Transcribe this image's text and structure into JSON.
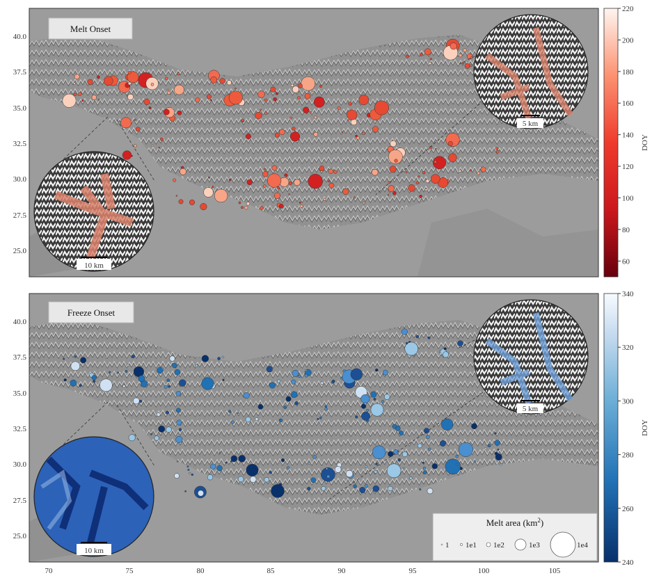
{
  "x_ticks": [
    "70",
    "75",
    "80",
    "85",
    "90",
    "95",
    "100",
    "105"
  ],
  "y_ticks": [
    "40.0",
    "37.5",
    "35.0",
    "32.5",
    "30.0",
    "27.5",
    "25.0"
  ],
  "panels": [
    {
      "title": "Melt Onset",
      "colorbar": {
        "label": "DOY",
        "ticks": [
          "220",
          "200",
          "180",
          "160",
          "140",
          "120",
          "100",
          "80",
          "60"
        ],
        "min": 50,
        "max": 220,
        "scheme": "reds"
      },
      "inset_top_scale": "5 km",
      "inset_bottom_scale": "10 km"
    },
    {
      "title": "Freeze Onset",
      "colorbar": {
        "label": "DOY",
        "ticks": [
          "340",
          "320",
          "300",
          "280",
          "260",
          "240"
        ],
        "min": 240,
        "max": 340,
        "scheme": "blues"
      },
      "inset_top_scale": "5 km",
      "inset_bottom_scale": "10 km"
    }
  ],
  "legend": {
    "title_main": "Melt area (km",
    "title_sup": "2",
    "title_end": ")",
    "items": [
      "1",
      "1e1",
      "1e2",
      "1e3",
      "1e4"
    ]
  },
  "colors": {
    "map_bg": "#9c9c9c",
    "terrain": "#8e8e8e",
    "frame": "#333333"
  }
}
